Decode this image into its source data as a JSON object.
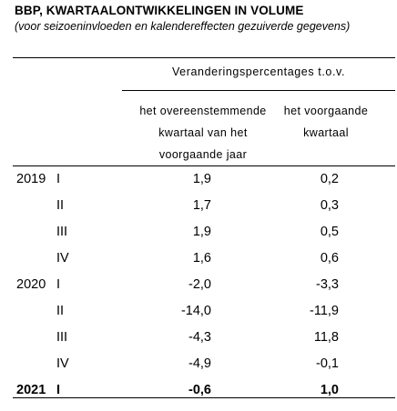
{
  "table": {
    "title": "BBP, KWARTAALONTWIKKELINGEN IN VOLUME",
    "subtitle": "(voor seizoeninvloeden en kalendereffecten gezuiverde gegevens)",
    "header_main": "Veranderingspercentages t.o.v.",
    "columns": [
      "het overeenstemmende kwartaal van het voorgaande jaar",
      "het voorgaande kwartaal"
    ],
    "rows": [
      {
        "year": "2019",
        "quarter": "I",
        "v1": "1,9",
        "v2": "0,2"
      },
      {
        "year": "",
        "quarter": "II",
        "v1": "1,7",
        "v2": "0,3"
      },
      {
        "year": "",
        "quarter": "III",
        "v1": "1,9",
        "v2": "0,5"
      },
      {
        "year": "",
        "quarter": "IV",
        "v1": "1,6",
        "v2": "0,6"
      },
      {
        "year": "2020",
        "quarter": "I",
        "v1": "-2,0",
        "v2": "-3,3"
      },
      {
        "year": "",
        "quarter": "II",
        "v1": "-14,0",
        "v2": "-11,9"
      },
      {
        "year": "",
        "quarter": "III",
        "v1": "-4,3",
        "v2": "11,8"
      },
      {
        "year": "",
        "quarter": "IV",
        "v1": "-4,9",
        "v2": "-0,1"
      },
      {
        "year": "2021",
        "quarter": "I",
        "v1": "-0,6",
        "v2": "1,0",
        "bold": true
      }
    ]
  }
}
